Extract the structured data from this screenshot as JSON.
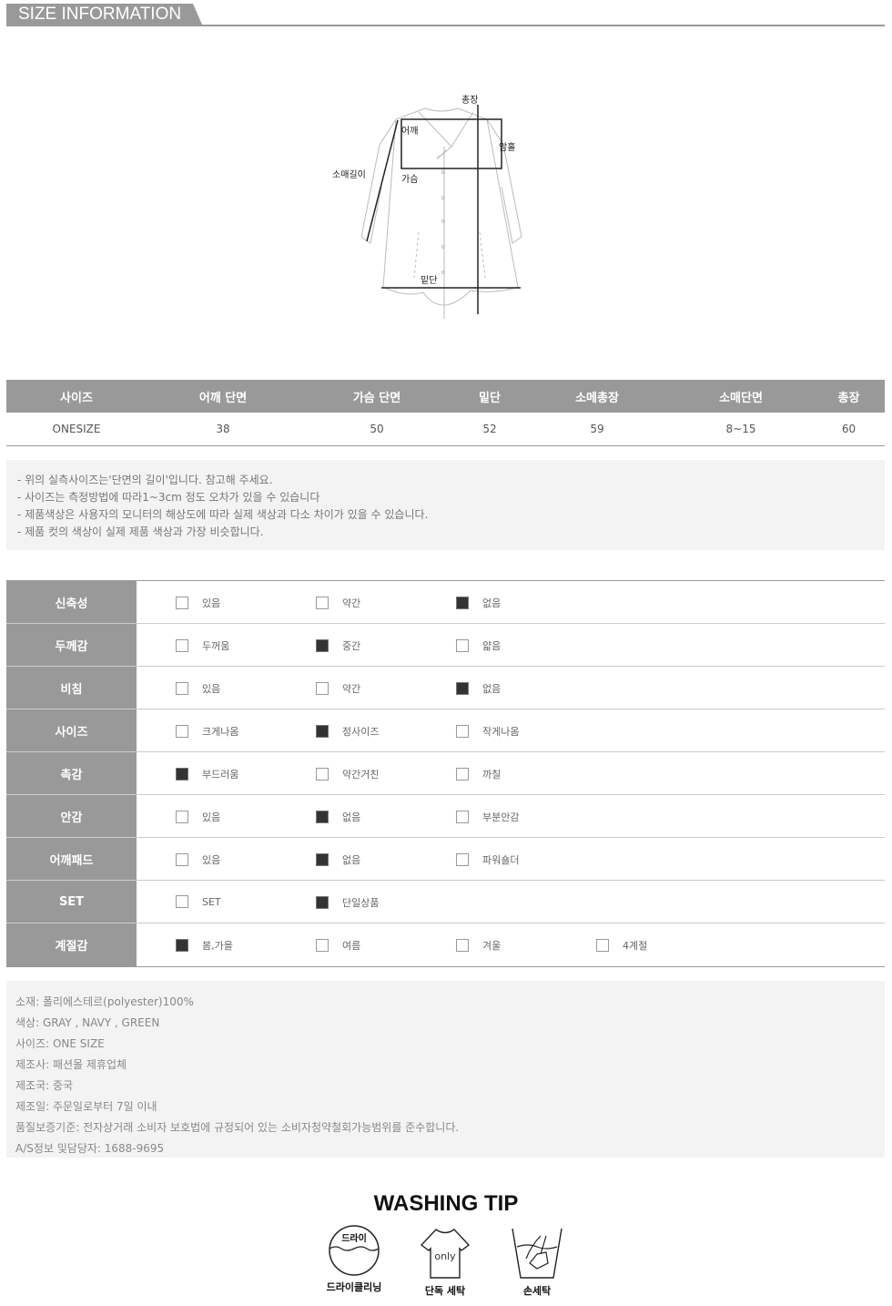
{
  "header": {
    "title": "SIZE INFORMATION"
  },
  "diagram": {
    "labels": {
      "total_length": "총장",
      "shoulder": "어깨",
      "armhole": "암홀",
      "sleeve_length": "소매길이",
      "chest": "가슴",
      "hem": "밑단"
    }
  },
  "size_table": {
    "headers": [
      "사이즈",
      "어깨 단면",
      "가슴 단면",
      "밑단",
      "소메총장",
      "소매단면",
      "총장"
    ],
    "rows": [
      [
        "ONESIZE",
        "38",
        "50",
        "52",
        "59",
        "8~15",
        "60"
      ]
    ]
  },
  "notes": [
    "- 위의 실측사이즈는'단면의 길이'입니다. 참고해 주세요.",
    "- 사이즈는 측정방법에 따라1~3cm 정도 오차가 있을 수 있습니다",
    "- 제품색상은 사용자의 모니터의 해상도에 따라 실제 색상과 다소 차이가 있을 수 있습니다.",
    "- 제품 컷의 색상이 실제 제품 색상과 가장 비슷합니다."
  ],
  "attributes": [
    {
      "label": "신축성",
      "options": [
        {
          "label": "있음",
          "checked": false
        },
        {
          "label": "약간",
          "checked": false
        },
        {
          "label": "없음",
          "checked": true
        }
      ]
    },
    {
      "label": "두께감",
      "options": [
        {
          "label": "두꺼움",
          "checked": false
        },
        {
          "label": "중간",
          "checked": true
        },
        {
          "label": "얇음",
          "checked": false
        }
      ]
    },
    {
      "label": "비침",
      "options": [
        {
          "label": "있음",
          "checked": false
        },
        {
          "label": "약간",
          "checked": false
        },
        {
          "label": "없음",
          "checked": true
        }
      ]
    },
    {
      "label": "사이즈",
      "options": [
        {
          "label": "크게나옴",
          "checked": false
        },
        {
          "label": "정사이즈",
          "checked": true
        },
        {
          "label": "작게나옴",
          "checked": false
        }
      ]
    },
    {
      "label": "촉감",
      "options": [
        {
          "label": "부드러움",
          "checked": true
        },
        {
          "label": "약간거친",
          "checked": false
        },
        {
          "label": "까칠",
          "checked": false
        }
      ]
    },
    {
      "label": "안감",
      "options": [
        {
          "label": "있음",
          "checked": false
        },
        {
          "label": "없음",
          "checked": true
        },
        {
          "label": "부분안감",
          "checked": false
        }
      ]
    },
    {
      "label": "어깨패드",
      "options": [
        {
          "label": "있음",
          "checked": false
        },
        {
          "label": "없음",
          "checked": true
        },
        {
          "label": "파워숄더",
          "checked": false
        }
      ]
    },
    {
      "label": "SET",
      "options": [
        {
          "label": "SET",
          "checked": false
        },
        {
          "label": "단일상품",
          "checked": true
        }
      ]
    },
    {
      "label": "계절감",
      "options": [
        {
          "label": "봄,가을",
          "checked": true
        },
        {
          "label": "여름",
          "checked": false
        },
        {
          "label": "겨울",
          "checked": false
        },
        {
          "label": "4계절",
          "checked": false
        }
      ]
    }
  ],
  "details": [
    "소재: 폴리에스테르(polyester)100%",
    "색상: GRAY , NAVY , GREEN",
    "사이즈: ONE SIZE",
    "제조사: 패션몰 제휴업체",
    "제조국: 중국",
    "제조일: 주문일로부터 7일 이내",
    "품질보증기준: 전자상거래 소비자 보호법에 규정되어 있는 소비자청약철회가능범위를 준수합니다.",
    "A/S정보 및담당자: 1688-9695"
  ],
  "washing": {
    "title": "WASHING TIP",
    "items": [
      {
        "label": "드라이클리닝",
        "icon_text": "드라이",
        "icon": "dry-clean-icon"
      },
      {
        "label": "단독 세탁",
        "icon_text": "only",
        "icon": "tshirt-only-icon"
      },
      {
        "label": "손세탁",
        "icon": "hand-wash-icon"
      }
    ]
  }
}
